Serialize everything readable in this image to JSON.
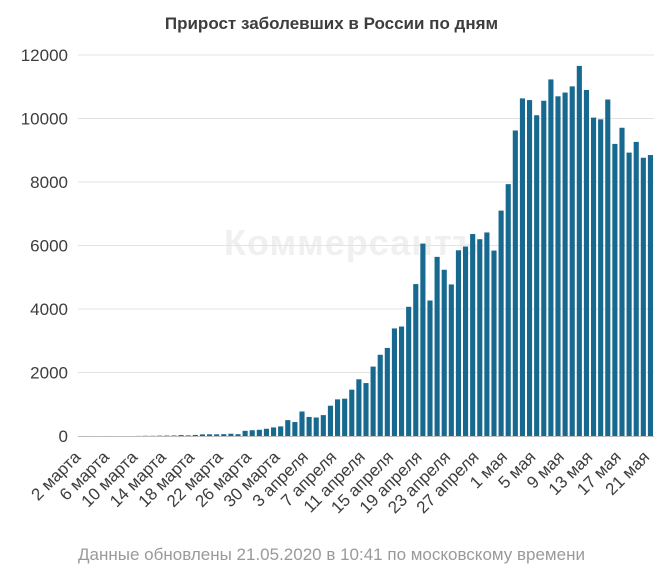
{
  "chart_data": {
    "type": "bar",
    "title": "Прирост заболевших в России по дням",
    "xlabel": "",
    "ylabel": "",
    "ylim": [
      0,
      12000
    ],
    "yticks": [
      0,
      2000,
      4000,
      6000,
      8000,
      10000,
      12000
    ],
    "xtick_labels": [
      "2 марта",
      "6 марта",
      "10 марта",
      "14 марта",
      "18 марта",
      "22 марта",
      "26 марта",
      "30 марта",
      "3 апреля",
      "7 апреля",
      "11 апреля",
      "15 апреля",
      "19 апреля",
      "23 апреля",
      "27 апреля",
      "1 мая",
      "5 мая",
      "9 мая",
      "13 мая",
      "17 мая",
      "21 мая"
    ],
    "grid": true,
    "bar_color": "#17698f",
    "categories": [
      "2 марта",
      "3 марта",
      "4 марта",
      "5 марта",
      "6 марта",
      "7 марта",
      "8 марта",
      "9 марта",
      "10 марта",
      "11 марта",
      "12 марта",
      "13 марта",
      "14 марта",
      "15 марта",
      "16 марта",
      "17 марта",
      "18 марта",
      "19 марта",
      "20 марта",
      "21 марта",
      "22 марта",
      "23 марта",
      "24 марта",
      "25 марта",
      "26 марта",
      "27 марта",
      "28 марта",
      "29 марта",
      "30 марта",
      "31 марта",
      "1 апреля",
      "2 апреля",
      "3 апреля",
      "4 апреля",
      "5 апреля",
      "6 апреля",
      "7 апреля",
      "8 апреля",
      "9 апреля",
      "10 апреля",
      "11 апреля",
      "12 апреля",
      "13 апреля",
      "14 апреля",
      "15 апреля",
      "16 апреля",
      "17 апреля",
      "18 апреля",
      "19 апреля",
      "20 апреля",
      "21 апреля",
      "22 апреля",
      "23 апреля",
      "24 апреля",
      "25 апреля",
      "26 апреля",
      "27 апреля",
      "28 апреля",
      "29 апреля",
      "30 апреля",
      "1 мая",
      "2 мая",
      "3 мая",
      "4 мая",
      "5 мая",
      "6 мая",
      "7 мая",
      "8 мая",
      "9 мая",
      "10 мая",
      "11 мая",
      "12 мая",
      "13 мая",
      "14 мая",
      "15 мая",
      "16 мая",
      "17 мая",
      "18 мая",
      "19 мая",
      "20 мая",
      "21 мая"
    ],
    "values": [
      1,
      0,
      1,
      0,
      1,
      0,
      0,
      0,
      3,
      7,
      6,
      11,
      14,
      16,
      29,
      20,
      33,
      52,
      54,
      53,
      58,
      71,
      57,
      163,
      182,
      196,
      228,
      270,
      302,
      500,
      440,
      771,
      601,
      582,
      658,
      954,
      1154,
      1175,
      1459,
      1786,
      1667,
      2186,
      2558,
      2774,
      3388,
      3448,
      4070,
      4785,
      6060,
      4268,
      5642,
      5236,
      4774,
      5849,
      5966,
      6361,
      6198,
      6411,
      5841,
      7099,
      7933,
      9623,
      10633,
      10581,
      10102,
      10559,
      11231,
      10699,
      10817,
      11012,
      11656,
      10899,
      10028,
      9974,
      10598,
      9200,
      9709,
      8926,
      9263,
      8764,
      8849
    ],
    "watermark": "Коммерсантъ",
    "footnote": "Данные обновлены 21.05.2020 в 10:41 по московскому времени"
  }
}
